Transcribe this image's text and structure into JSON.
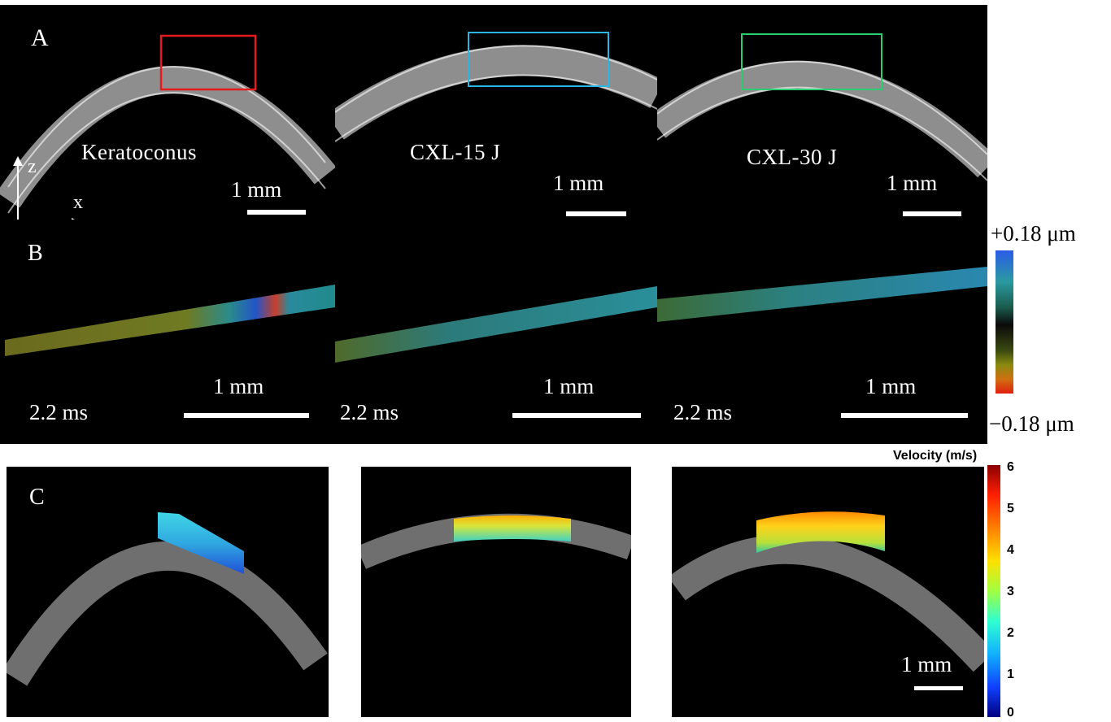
{
  "panel_letters": {
    "a": "A",
    "b": "B",
    "c": "C"
  },
  "conditions": [
    "Keratoconus",
    "CXL-15 J",
    "CXL-30 J"
  ],
  "row_a_scale": [
    "1 mm",
    "1 mm",
    "1 mm"
  ],
  "row_b_scale": [
    "1 mm",
    "1 mm",
    "1 mm"
  ],
  "row_b_time": [
    "2.2 ms",
    "2.2 ms",
    "2.2 ms"
  ],
  "axes": {
    "z": "z",
    "x": "x"
  },
  "displacement_colorbar": {
    "max": "+0.18 μm",
    "min": "−0.18 μm"
  },
  "velocity_colorbar": {
    "title": "Velocity (m/s)",
    "ticks": [
      "6",
      "5",
      "4",
      "3",
      "2",
      "1",
      "0"
    ]
  },
  "row_c_scale": "1 mm",
  "roi_colors": [
    "#e41a1c",
    "#29b6e6",
    "#2ecc71"
  ]
}
